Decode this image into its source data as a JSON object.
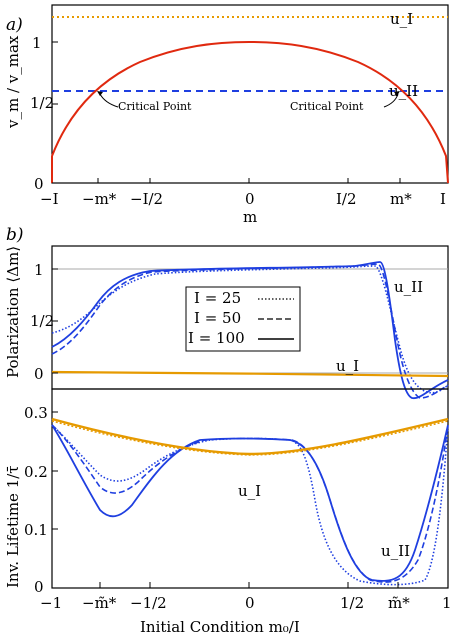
{
  "colors": {
    "orange": "#e69a00",
    "blue": "#1f3fe0",
    "red": "#e0290f",
    "gray": "#aaaaaa"
  },
  "panel_a": {
    "label": "a)",
    "ylabel": "v_m / v_max",
    "xlabel": "m",
    "uI": "u_I",
    "uII": "u_II",
    "critical_left": "Critical Point",
    "critical_right": "Critical Point",
    "xticks": [
      "−I",
      "−m*",
      "−I/2",
      "0",
      "I/2",
      "m*",
      "I"
    ],
    "yticks": [
      "0",
      "1/2",
      "1"
    ]
  },
  "panel_b": {
    "label": "b)",
    "top_ylabel": "Polarization ⟨Δm⟩",
    "bottom_ylabel": "Inv. Lifetime 1/τ̄",
    "xlabel": "Initial Condition m₀/I",
    "top_yticks": [
      "0",
      "1/2",
      "1"
    ],
    "bottom_yticks": [
      "0",
      "0.1",
      "0.2",
      "0.3"
    ],
    "xticks": [
      "−1",
      "−m̃*",
      "−1/2",
      "0",
      "1/2",
      "m̃*",
      "1"
    ],
    "uI_top": "u_I",
    "uII_top": "u_II",
    "uI_bottom": "u_I",
    "uII_bottom": "u_II",
    "legend": [
      {
        "label": "I = 25",
        "style": "dotted"
      },
      {
        "label": "I = 50",
        "style": "dashed"
      },
      {
        "label": "I = 100",
        "style": "solid"
      }
    ]
  },
  "chart_data": [
    {
      "type": "line",
      "title": "",
      "xlabel": "m",
      "ylabel": "v_m/v_max",
      "xlim": [
        -1,
        1
      ],
      "ylim": [
        0,
        1.2
      ],
      "series": [
        {
          "name": "u_I",
          "x": [
            -1,
            1
          ],
          "y": [
            1.15,
            1.15
          ]
        },
        {
          "name": "u_II",
          "x": [
            -1,
            1
          ],
          "y": [
            0.6,
            0.6
          ]
        },
        {
          "name": "",
          "x": [
            -1,
            -0.9,
            -0.75,
            -0.5,
            -0.25,
            0,
            0.25,
            0.5,
            0.75,
            0.9,
            1
          ],
          "y": [
            0.2,
            0.45,
            0.66,
            0.87,
            0.97,
            1.0,
            0.97,
            0.87,
            0.66,
            0.45,
            0.2
          ]
        }
      ]
    },
    {
      "type": "line",
      "title": "",
      "xlabel": "Initial Condition m0/I",
      "ylabel": "Polarization <Δm>",
      "xlim": [
        -1,
        1
      ],
      "ylim": [
        -0.35,
        1.15
      ],
      "series": [
        {
          "name": "I = 100",
          "x": [
            -1,
            -0.85,
            -0.7,
            -0.6,
            -0.5,
            -0.3,
            0,
            0.3,
            0.55,
            0.65,
            0.72,
            0.78,
            0.85,
            0.92,
            1
          ],
          "y": [
            0.03,
            0.15,
            0.6,
            0.85,
            0.95,
            0.99,
            1.0,
            1.02,
            1.06,
            1.08,
            0.6,
            -0.05,
            -0.23,
            -0.18,
            -0.1
          ]
        },
        {
          "name": "I = 50",
          "x": [
            -1,
            -0.85,
            -0.7,
            -0.6,
            -0.5,
            -0.3,
            0,
            0.3,
            0.55,
            0.65,
            0.72,
            0.8,
            0.88,
            0.95,
            1
          ],
          "y": [
            0.08,
            0.2,
            0.55,
            0.8,
            0.93,
            0.98,
            1.0,
            1.01,
            1.04,
            1.05,
            0.7,
            0.1,
            -0.2,
            -0.22,
            -0.15
          ]
        },
        {
          "name": "I = 25",
          "x": [
            -1,
            -0.85,
            -0.7,
            -0.6,
            -0.5,
            -0.3,
            0,
            0.3,
            0.55,
            0.65,
            0.72,
            0.8,
            0.88,
            0.95,
            1
          ],
          "y": [
            0.2,
            0.33,
            0.55,
            0.75,
            0.88,
            0.96,
            0.99,
            1.0,
            1.02,
            1.03,
            0.8,
            0.25,
            -0.12,
            -0.2,
            -0.15
          ]
        },
        {
          "name": "u_I",
          "x": [
            -1,
            0,
            1
          ],
          "y": [
            0.0,
            0.0,
            -0.02
          ]
        }
      ]
    },
    {
      "type": "line",
      "title": "",
      "xlabel": "Initial Condition m0/I",
      "ylabel": "Inv. Lifetime 1/τ",
      "xlim": [
        -1,
        1
      ],
      "ylim": [
        0,
        0.35
      ],
      "series": [
        {
          "name": "I = 100 (u_II)",
          "x": [
            -1,
            -0.9,
            -0.8,
            -0.7,
            -0.6,
            -0.45,
            -0.3,
            0,
            0.3,
            0.45,
            0.55,
            0.65,
            0.72,
            0.8,
            0.9,
            1
          ],
          "y": [
            0.275,
            0.22,
            0.16,
            0.14,
            0.165,
            0.24,
            0.285,
            0.3,
            0.29,
            0.23,
            0.1,
            0.025,
            0.01,
            0.04,
            0.18,
            0.275
          ]
        },
        {
          "name": "I = 50 (u_II)",
          "x": [
            -1,
            -0.9,
            -0.8,
            -0.7,
            -0.6,
            -0.45,
            -0.3,
            0,
            0.3,
            0.45,
            0.55,
            0.65,
            0.72,
            0.8,
            0.9,
            1
          ],
          "y": [
            0.275,
            0.23,
            0.18,
            0.17,
            0.185,
            0.245,
            0.285,
            0.3,
            0.285,
            0.24,
            0.15,
            0.05,
            0.015,
            0.02,
            0.12,
            0.275
          ]
        },
        {
          "name": "I = 25 (u_II)",
          "x": [
            -1,
            -0.9,
            -0.8,
            -0.7,
            -0.6,
            -0.45,
            -0.3,
            0,
            0.3,
            0.4,
            0.48,
            0.55,
            0.65,
            0.75,
            0.85,
            0.95,
            1
          ],
          "y": [
            0.275,
            0.24,
            0.215,
            0.21,
            0.22,
            0.25,
            0.285,
            0.3,
            0.29,
            0.27,
            0.15,
            0.07,
            0.03,
            0.01,
            0.005,
            0.06,
            0.275
          ]
        },
        {
          "name": "u_I",
          "x": [
            -1,
            -0.5,
            0,
            0.1,
            0.5,
            1
          ],
          "y": [
            0.34,
            0.28,
            0.22,
            0.22,
            0.27,
            0.34
          ]
        }
      ]
    }
  ]
}
